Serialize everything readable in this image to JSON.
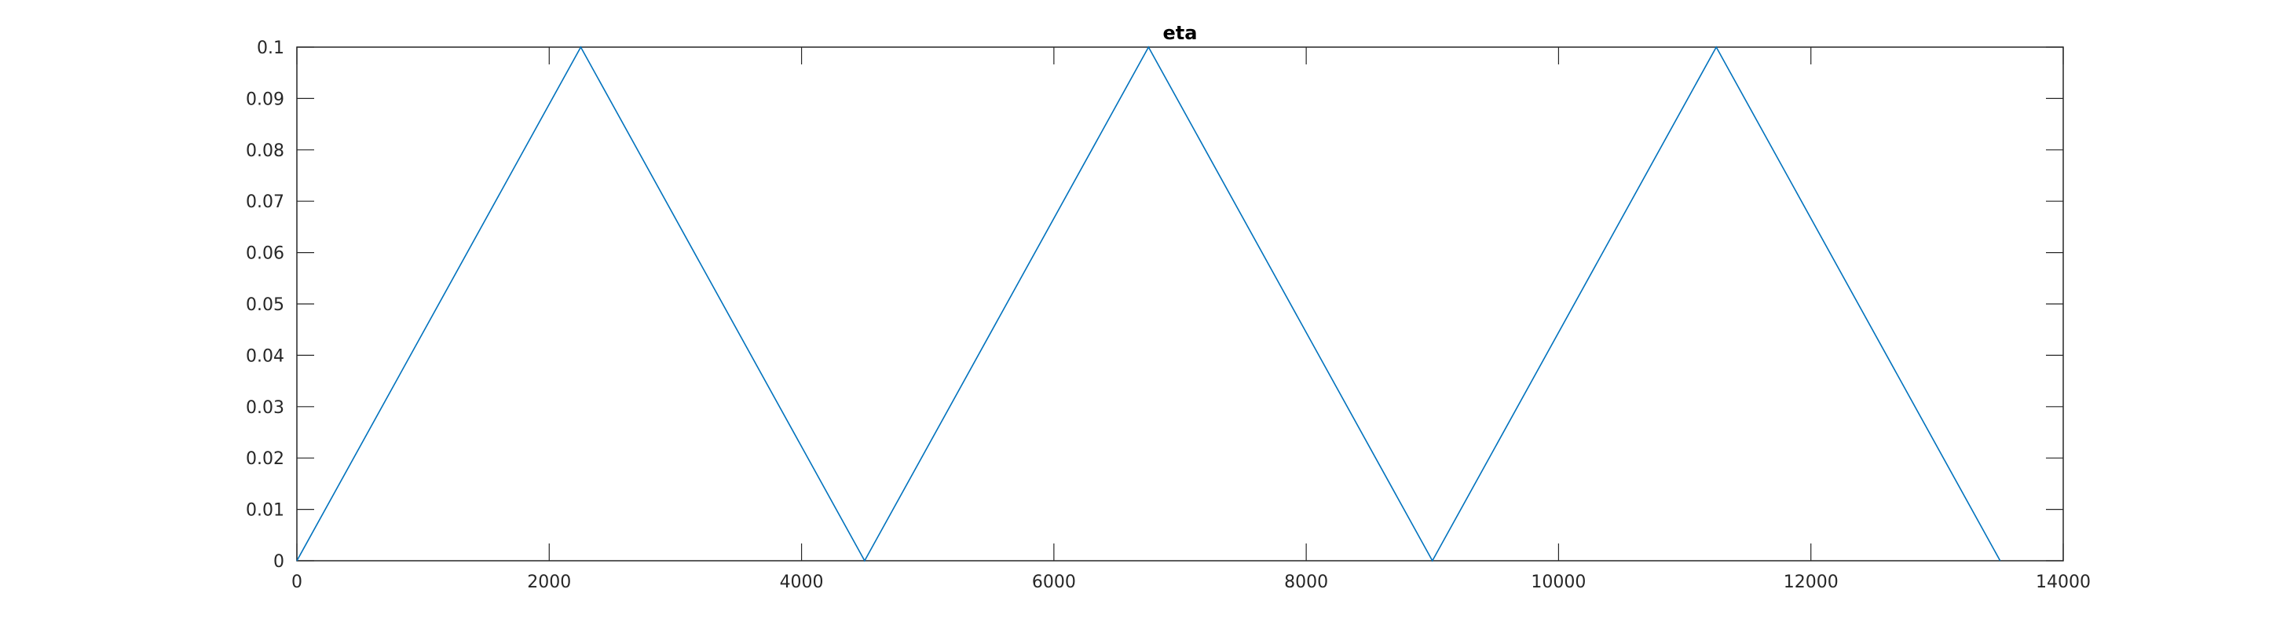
{
  "chart_data": {
    "type": "line",
    "title": "eta",
    "xlabel": "",
    "ylabel": "",
    "xlim": [
      0,
      14000
    ],
    "ylim": [
      0,
      0.1
    ],
    "x_ticks": [
      0,
      2000,
      4000,
      6000,
      8000,
      10000,
      12000,
      14000
    ],
    "y_ticks": [
      0,
      0.01,
      0.02,
      0.03,
      0.04,
      0.05,
      0.06,
      0.07,
      0.08,
      0.09,
      0.1
    ],
    "grid": false,
    "series": [
      {
        "color": "#0072BD",
        "x": [
          0,
          2250,
          4500,
          6750,
          9000,
          11250,
          13500
        ],
        "y": [
          0,
          0.1,
          0,
          0.1,
          0,
          0.1,
          0
        ]
      }
    ]
  }
}
